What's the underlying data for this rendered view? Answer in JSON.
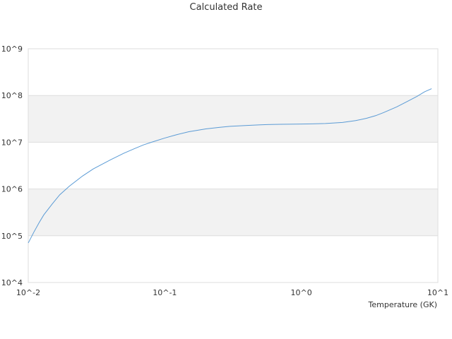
{
  "chart_data": {
    "type": "line",
    "title": "Calculated Rate",
    "xlabel": "Temperature (GK)",
    "ylabel": "",
    "x_scale": "log",
    "y_scale": "log",
    "xlim": [
      0.01,
      10
    ],
    "ylim": [
      10000,
      1000000000
    ],
    "x_ticks": [
      "10^-2",
      "10^-1",
      "10^0",
      "10^1"
    ],
    "y_ticks": [
      "10^4",
      "10^5",
      "10^6",
      "10^7",
      "10^8",
      "10^9"
    ],
    "alternating_bands": true,
    "series": [
      {
        "color": "#5b9bd5",
        "x": [
          0.01,
          0.011,
          0.012,
          0.013,
          0.015,
          0.017,
          0.02,
          0.025,
          0.03,
          0.04,
          0.05,
          0.06,
          0.07,
          0.08,
          0.1,
          0.12,
          0.15,
          0.2,
          0.25,
          0.3,
          0.4,
          0.5,
          0.6,
          0.7,
          0.8,
          1.0,
          1.2,
          1.5,
          2.0,
          2.5,
          3.0,
          3.5,
          4.0,
          5.0,
          6.0,
          7.0,
          8.0,
          9.0
        ],
        "y": [
          70000,
          120000,
          190000,
          280000,
          480000,
          750000,
          1150000,
          1900000,
          2700000,
          4200000,
          5800000,
          7300000,
          8800000,
          10000000,
          12300000,
          14300000,
          16800000,
          19300000,
          20800000,
          21900000,
          22900000,
          23600000,
          24000000,
          24200000,
          24300000,
          24500000,
          24700000,
          25200000,
          26500000,
          29000000,
          32500000,
          37000000,
          43000000,
          57000000,
          75000000,
          95000000,
          120000000,
          140000000
        ]
      }
    ]
  }
}
